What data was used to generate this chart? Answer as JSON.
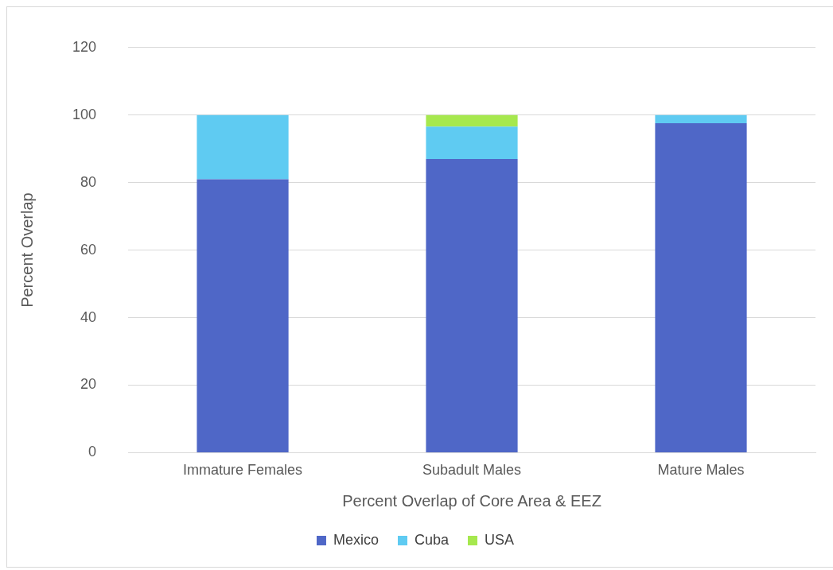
{
  "chart_data": {
    "type": "bar",
    "stacked": true,
    "xlabel": "Percent Overlap of Core Area & EEZ",
    "ylabel": "Percent Overlap",
    "categories": [
      "Immature Females",
      "Subadult Males",
      "Mature Males"
    ],
    "series": [
      {
        "name": "Mexico",
        "color": "#4f67c7",
        "values": [
          81,
          87,
          97.6
        ]
      },
      {
        "name": "Cuba",
        "color": "#5fcbf2",
        "values": [
          19,
          9.6,
          2.4
        ]
      },
      {
        "name": "USA",
        "color": "#a6e84e",
        "values": [
          0,
          3.4,
          0
        ]
      }
    ],
    "ylim": [
      0,
      120
    ],
    "yticks": [
      0,
      20,
      40,
      60,
      80,
      100,
      120
    ],
    "grid": "y",
    "legend": "bottom"
  }
}
